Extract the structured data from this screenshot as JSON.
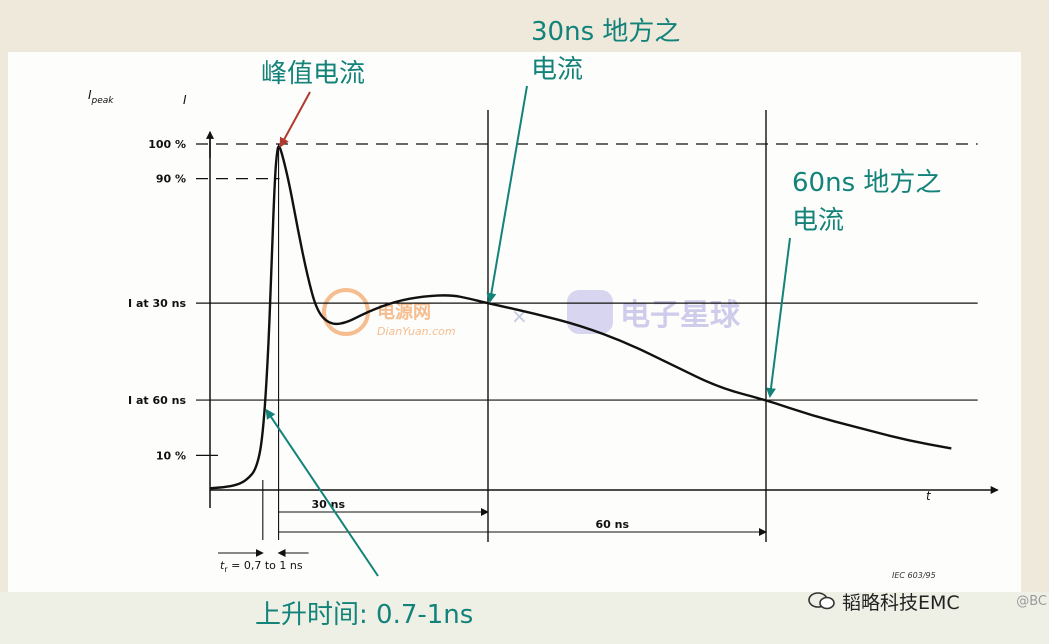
{
  "chart_data": {
    "type": "line",
    "x_unit": "ns",
    "xlim": [
      0,
      85
    ],
    "ylim": [
      0,
      103
    ],
    "series": [
      {
        "points": [
          [
            0.0,
            0.5
          ],
          [
            1.5,
            0.8
          ],
          [
            3.0,
            1.5
          ],
          [
            4.0,
            3.0
          ],
          [
            5.0,
            6.0
          ],
          [
            5.7,
            15.0
          ],
          [
            6.3,
            40.0
          ],
          [
            6.7,
            70.0
          ],
          [
            7.0,
            90.0
          ],
          [
            7.2,
            97.0
          ],
          [
            7.4,
            100.0
          ],
          [
            7.8,
            97.0
          ],
          [
            8.6,
            88.0
          ],
          [
            9.5,
            75.0
          ],
          [
            10.5,
            62.0
          ],
          [
            11.5,
            52.0
          ],
          [
            12.8,
            48.0
          ],
          [
            14.5,
            48.0
          ],
          [
            17.0,
            51.5
          ],
          [
            20.0,
            54.5
          ],
          [
            23.0,
            56.0
          ],
          [
            26.0,
            56.4
          ],
          [
            28.0,
            55.3
          ],
          [
            30.0,
            54.0
          ],
          [
            35.0,
            51.0
          ],
          [
            40.0,
            47.5
          ],
          [
            45.0,
            42.5
          ],
          [
            50.0,
            36.0
          ],
          [
            55.0,
            29.5
          ],
          [
            60.0,
            26.0
          ],
          [
            65.0,
            21.5
          ],
          [
            70.0,
            18.0
          ],
          [
            75.0,
            14.5
          ],
          [
            80.0,
            12.0
          ]
        ]
      }
    ],
    "y_levels": [
      {
        "label": "100 %",
        "value": 100,
        "style": "dashed"
      },
      {
        "label": "90 %",
        "value": 90,
        "style": "dashed"
      },
      {
        "label": "I at 30 ns",
        "value": 54,
        "style": "solid"
      },
      {
        "label": "I at 60 ns",
        "value": 26,
        "style": "solid"
      },
      {
        "label": "10 %",
        "value": 10,
        "style": "short"
      }
    ],
    "x_markers": [
      30,
      60
    ],
    "y_axis_label": "I",
    "y_axis_label_sub": "peak",
    "y_axis_label_right": "I",
    "x_axis_label": "t",
    "dimension_labels": [
      "30 ns",
      "60 ns"
    ],
    "rise_time_label_main": "t",
    "rise_time_label_sub": "r",
    "rise_time_label_rest": " = 0,7 to 1 ns",
    "source_tag": "IEC 603/95",
    "annotations": {
      "peak": "峰值电流",
      "at30_line1": "30ns 地方之",
      "at30_line2": "电流",
      "at60_line1": "60ns 地方之",
      "at60_line2": "电流",
      "rise": "上升时间: 0.7-1ns"
    },
    "annotation_color": "#13837a"
  },
  "watermarks": {
    "dianyuan_text": "电源网",
    "dianyuan_url": "DianYuan.com",
    "cross": "×",
    "xingqiu_text": "电子星球"
  },
  "brand": "韬略科技EMC",
  "corner_text": "@BC"
}
